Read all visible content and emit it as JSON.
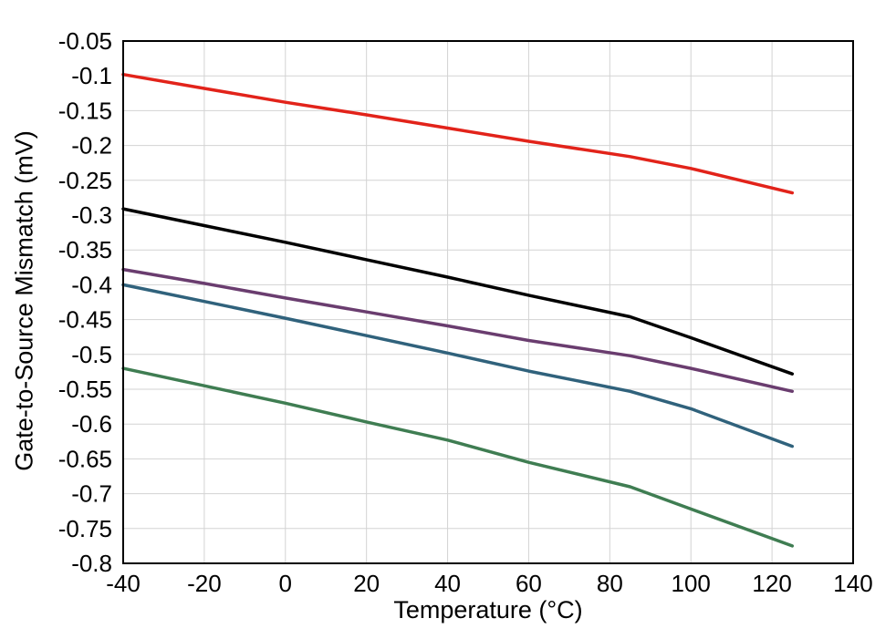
{
  "chart_data": {
    "type": "line",
    "title": "",
    "xlabel": "Temperature (°C)",
    "ylabel": "Gate-to-Source Mismatch (mV)",
    "xlim": [
      -40,
      140
    ],
    "ylim": [
      -0.8,
      -0.05
    ],
    "grid": true,
    "legend": "none",
    "colors": {
      "grid": "#d3d3d3",
      "border": "#000000",
      "background": "#ffffff"
    },
    "xticks": [
      -40,
      -20,
      0,
      20,
      40,
      60,
      80,
      100,
      120,
      140
    ],
    "xtick_labels": [
      "-40",
      "-20",
      "0",
      "20",
      "40",
      "60",
      "80",
      "100",
      "120",
      "140"
    ],
    "yticks": [
      -0.05,
      -0.1,
      -0.15,
      -0.2,
      -0.25,
      -0.3,
      -0.35,
      -0.4,
      -0.45,
      -0.5,
      -0.55,
      -0.6,
      -0.65,
      -0.7,
      -0.75,
      -0.8
    ],
    "ytick_labels": [
      "-0.05",
      "-0.1",
      "-0.15",
      "-0.2",
      "-0.25",
      "-0.3",
      "-0.35",
      "-0.4",
      "-0.45",
      "-0.5",
      "-0.55",
      "-0.6",
      "-0.65",
      "-0.7",
      "-0.75",
      "-0.8"
    ],
    "x": [
      -40,
      -20,
      0,
      20,
      40,
      60,
      85,
      100,
      125
    ],
    "series": [
      {
        "name": "red",
        "color": "#e2231a",
        "values": [
          -0.098,
          -0.118,
          -0.138,
          -0.156,
          -0.175,
          -0.194,
          -0.216,
          -0.233,
          -0.268
        ]
      },
      {
        "name": "black",
        "color": "#000000",
        "values": [
          -0.291,
          -0.315,
          -0.339,
          -0.364,
          -0.389,
          -0.415,
          -0.446,
          -0.476,
          -0.528
        ]
      },
      {
        "name": "purple",
        "color": "#6a3d6f",
        "values": [
          -0.378,
          -0.398,
          -0.419,
          -0.439,
          -0.459,
          -0.48,
          -0.502,
          -0.52,
          -0.553
        ]
      },
      {
        "name": "teal",
        "color": "#30627c",
        "values": [
          -0.4,
          -0.424,
          -0.448,
          -0.473,
          -0.498,
          -0.524,
          -0.553,
          -0.578,
          -0.632
        ]
      },
      {
        "name": "green",
        "color": "#3f7d52",
        "values": [
          -0.52,
          -0.545,
          -0.57,
          -0.597,
          -0.623,
          -0.655,
          -0.69,
          -0.722,
          -0.775
        ]
      }
    ]
  }
}
